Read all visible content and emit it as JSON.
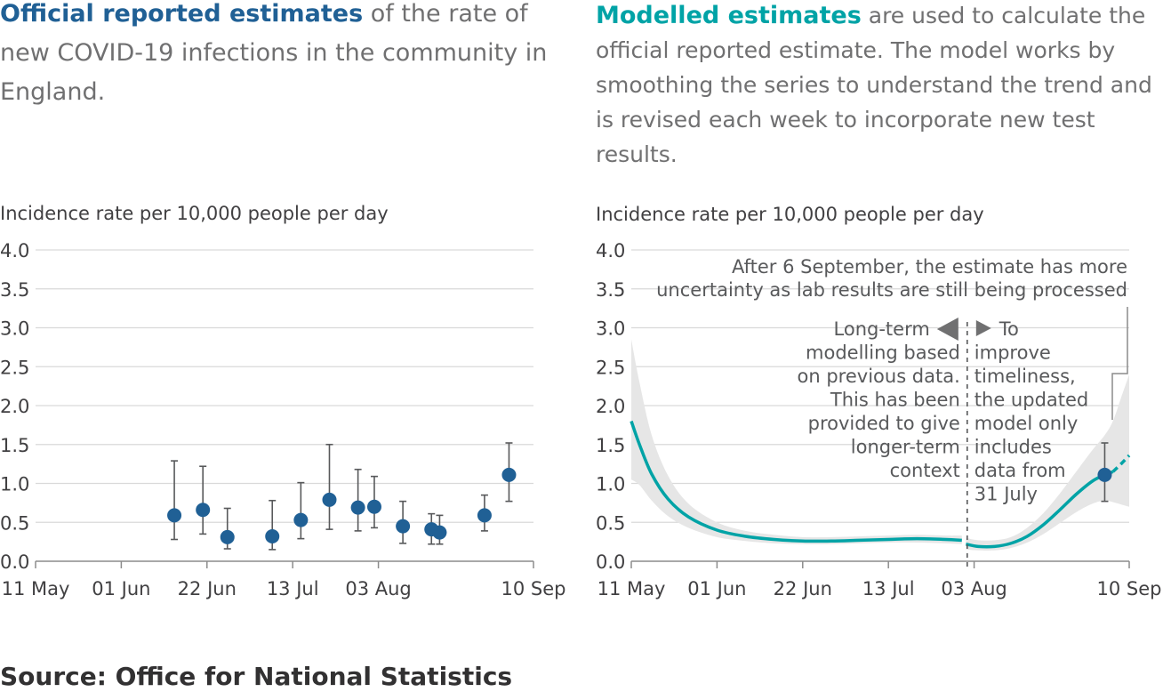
{
  "left": {
    "title_bold": "Official reported estimates",
    "title_rest": " of the rate of new COVID-19 infections in the community in England.",
    "ylabel": "Incidence rate per 10,000 people per day"
  },
  "right": {
    "title_bold": "Modelled estimates",
    "title_rest": " are used to calculate the official reported estimate. The model works by smoothing the series to understand the trend and is revised each week to incorporate new test results.",
    "ylabel": "Incidence rate per 10,000 people per day"
  },
  "source": "Source: Office for National Statistics",
  "colors": {
    "official": "#206095",
    "modelled": "#00a3a6",
    "band": "#e6e6e6",
    "grid": "#d9d9d9"
  },
  "chart_data": [
    {
      "type": "scatter",
      "title": "Official reported estimates",
      "ylabel": "Incidence rate per 10,000 people per day",
      "ylim": [
        0,
        4
      ],
      "yticks": [
        "0.0",
        "0.5",
        "1.0",
        "1.5",
        "2.0",
        "2.5",
        "3.0",
        "3.5",
        "4.0"
      ],
      "xlim": [
        "2020-05-11",
        "2020-09-10"
      ],
      "xticks": [
        {
          "date": "2020-05-11",
          "label": "11 May"
        },
        {
          "date": "2020-06-01",
          "label": "01 Jun"
        },
        {
          "date": "2020-06-22",
          "label": "22 Jun"
        },
        {
          "date": "2020-07-13",
          "label": "13 Jul"
        },
        {
          "date": "2020-08-03",
          "label": "03 Aug"
        },
        {
          "date": "2020-09-10",
          "label": "10 Sep"
        }
      ],
      "grid": true,
      "points": [
        {
          "date": "2020-06-14",
          "value": 0.59,
          "lower": 0.28,
          "upper": 1.29
        },
        {
          "date": "2020-06-21",
          "value": 0.66,
          "lower": 0.35,
          "upper": 1.22
        },
        {
          "date": "2020-06-27",
          "value": 0.31,
          "lower": 0.16,
          "upper": 0.68
        },
        {
          "date": "2020-07-08",
          "value": 0.32,
          "lower": 0.15,
          "upper": 0.78
        },
        {
          "date": "2020-07-15",
          "value": 0.53,
          "lower": 0.29,
          "upper": 1.01
        },
        {
          "date": "2020-07-22",
          "value": 0.79,
          "lower": 0.41,
          "upper": 1.5
        },
        {
          "date": "2020-07-29",
          "value": 0.69,
          "lower": 0.39,
          "upper": 1.18
        },
        {
          "date": "2020-08-02",
          "value": 0.7,
          "lower": 0.43,
          "upper": 1.09
        },
        {
          "date": "2020-08-09",
          "value": 0.45,
          "lower": 0.23,
          "upper": 0.77
        },
        {
          "date": "2020-08-16",
          "value": 0.41,
          "lower": 0.22,
          "upper": 0.61
        },
        {
          "date": "2020-08-18",
          "value": 0.37,
          "lower": 0.22,
          "upper": 0.59
        },
        {
          "date": "2020-08-29",
          "value": 0.59,
          "lower": 0.39,
          "upper": 0.85
        },
        {
          "date": "2020-09-04",
          "value": 1.11,
          "lower": 0.77,
          "upper": 1.52
        }
      ]
    },
    {
      "type": "line",
      "title": "Modelled estimates",
      "ylabel": "Incidence rate per 10,000 people per day",
      "ylim": [
        0,
        4
      ],
      "yticks": [
        "0.0",
        "0.5",
        "1.0",
        "1.5",
        "2.0",
        "2.5",
        "3.0",
        "3.5",
        "4.0"
      ],
      "xlim": [
        "2020-05-11",
        "2020-09-10"
      ],
      "xticks": [
        {
          "date": "2020-05-11",
          "label": "11 May"
        },
        {
          "date": "2020-06-01",
          "label": "01 Jun"
        },
        {
          "date": "2020-06-22",
          "label": "22 Jun"
        },
        {
          "date": "2020-07-13",
          "label": "13 Jul"
        },
        {
          "date": "2020-08-03",
          "label": "03 Aug"
        },
        {
          "date": "2020-09-10",
          "label": "10 Sep"
        }
      ],
      "grid": true,
      "long_term_model": [
        {
          "date": "2020-05-11",
          "value": 1.8,
          "lower": 1.05,
          "upper": 2.85
        },
        {
          "date": "2020-05-13",
          "value": 1.5,
          "lower": 0.98,
          "upper": 2.3
        },
        {
          "date": "2020-05-16",
          "value": 1.12,
          "lower": 0.78,
          "upper": 1.62
        },
        {
          "date": "2020-05-20",
          "value": 0.8,
          "lower": 0.58,
          "upper": 1.1
        },
        {
          "date": "2020-05-25",
          "value": 0.57,
          "lower": 0.43,
          "upper": 0.74
        },
        {
          "date": "2020-06-01",
          "value": 0.4,
          "lower": 0.31,
          "upper": 0.5
        },
        {
          "date": "2020-06-08",
          "value": 0.32,
          "lower": 0.26,
          "upper": 0.39
        },
        {
          "date": "2020-06-15",
          "value": 0.28,
          "lower": 0.23,
          "upper": 0.34
        },
        {
          "date": "2020-06-22",
          "value": 0.26,
          "lower": 0.22,
          "upper": 0.31
        },
        {
          "date": "2020-06-29",
          "value": 0.26,
          "lower": 0.22,
          "upper": 0.31
        },
        {
          "date": "2020-07-06",
          "value": 0.27,
          "lower": 0.23,
          "upper": 0.32
        },
        {
          "date": "2020-07-13",
          "value": 0.28,
          "lower": 0.24,
          "upper": 0.33
        },
        {
          "date": "2020-07-20",
          "value": 0.29,
          "lower": 0.24,
          "upper": 0.34
        },
        {
          "date": "2020-07-27",
          "value": 0.28,
          "lower": 0.23,
          "upper": 0.33
        },
        {
          "date": "2020-07-31",
          "value": 0.27,
          "lower": 0.22,
          "upper": 0.33
        }
      ],
      "updated_model": [
        {
          "date": "2020-08-01",
          "value": 0.22,
          "lower": 0.15,
          "upper": 0.3
        },
        {
          "date": "2020-08-04",
          "value": 0.19,
          "lower": 0.14,
          "upper": 0.27
        },
        {
          "date": "2020-08-08",
          "value": 0.19,
          "lower": 0.14,
          "upper": 0.27
        },
        {
          "date": "2020-08-12",
          "value": 0.23,
          "lower": 0.17,
          "upper": 0.31
        },
        {
          "date": "2020-08-16",
          "value": 0.32,
          "lower": 0.24,
          "upper": 0.43
        },
        {
          "date": "2020-08-20",
          "value": 0.47,
          "lower": 0.35,
          "upper": 0.62
        },
        {
          "date": "2020-08-24",
          "value": 0.66,
          "lower": 0.49,
          "upper": 0.87
        },
        {
          "date": "2020-08-28",
          "value": 0.86,
          "lower": 0.63,
          "upper": 1.15
        },
        {
          "date": "2020-09-01",
          "value": 1.03,
          "lower": 0.74,
          "upper": 1.43
        },
        {
          "date": "2020-09-04",
          "value": 1.11,
          "lower": 0.78,
          "upper": 1.62
        },
        {
          "date": "2020-09-06",
          "value": 1.15,
          "lower": 0.76,
          "upper": 1.8
        },
        {
          "date": "2020-09-08",
          "value": 1.25,
          "lower": 0.73,
          "upper": 2.1
        },
        {
          "date": "2020-09-10",
          "value": 1.36,
          "lower": 0.7,
          "upper": 2.4
        }
      ],
      "uncertain_after": "2020-09-06",
      "split_date": "2020-07-31",
      "official_point": {
        "date": "2020-09-04",
        "value": 1.11,
        "lower": 0.77,
        "upper": 1.52
      },
      "annotations": {
        "uncertainty": [
          "After 6 September, the estimate has more",
          "uncertainty as lab results are still being processed"
        ],
        "left_note": [
          "Long-term",
          "modelling based",
          "on previous data.",
          "This has been",
          "provided to give",
          "longer-term",
          "context"
        ],
        "right_note": [
          "To",
          "improve",
          "timeliness,",
          "the updated",
          "model only",
          "includes",
          "data from",
          "31 July"
        ]
      }
    }
  ]
}
